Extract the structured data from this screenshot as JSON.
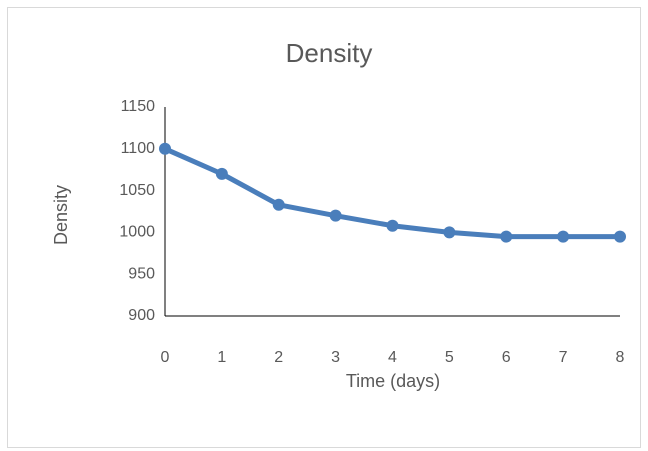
{
  "chart_data": {
    "type": "line",
    "title": "Density",
    "x_label": "Time (days)",
    "y_label": "Density",
    "x": [
      0,
      1,
      2,
      3,
      4,
      5,
      6,
      7,
      8
    ],
    "series": [
      {
        "name": "Density",
        "color": "#4a7ebb",
        "values": [
          1100,
          1070,
          1033,
          1020,
          1008,
          1000,
          995,
          995,
          995
        ]
      }
    ],
    "xlim": [
      0,
      8
    ],
    "xticks": [
      0,
      1,
      2,
      3,
      4,
      5,
      6,
      7,
      8
    ],
    "ylim": [
      900,
      1150
    ],
    "yticks": [
      900,
      950,
      1000,
      1050,
      1100,
      1150
    ],
    "grid": false
  }
}
